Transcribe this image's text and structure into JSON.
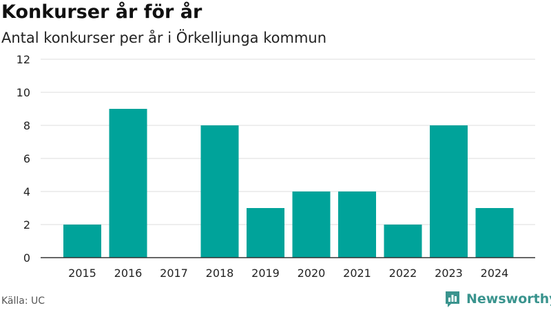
{
  "header": {
    "title": "Konkurser år för år",
    "subtitle": "Antal konkurser per år i Örkelljunga kommun"
  },
  "footer": {
    "source": "Källa: UC",
    "brand": "Newsworthy",
    "brand_icon": "newsworthy-bar-chart-icon"
  },
  "colors": {
    "bar": "#00a39a",
    "grid": "#dddddd",
    "axis": "#333333",
    "brand": "#3a948e"
  },
  "chart_data": {
    "type": "bar",
    "title": "Konkurser år för år",
    "subtitle": "Antal konkurser per år i Örkelljunga kommun",
    "categories": [
      "2015",
      "2016",
      "2017",
      "2018",
      "2019",
      "2020",
      "2021",
      "2022",
      "2023",
      "2024"
    ],
    "values": [
      2,
      9,
      0,
      8,
      3,
      4,
      4,
      2,
      8,
      3
    ],
    "ylim": [
      0,
      12
    ],
    "yticks": [
      0,
      2,
      4,
      6,
      8,
      10,
      12
    ],
    "xlabel": "",
    "ylabel": "",
    "grid": true,
    "legend": "none"
  }
}
